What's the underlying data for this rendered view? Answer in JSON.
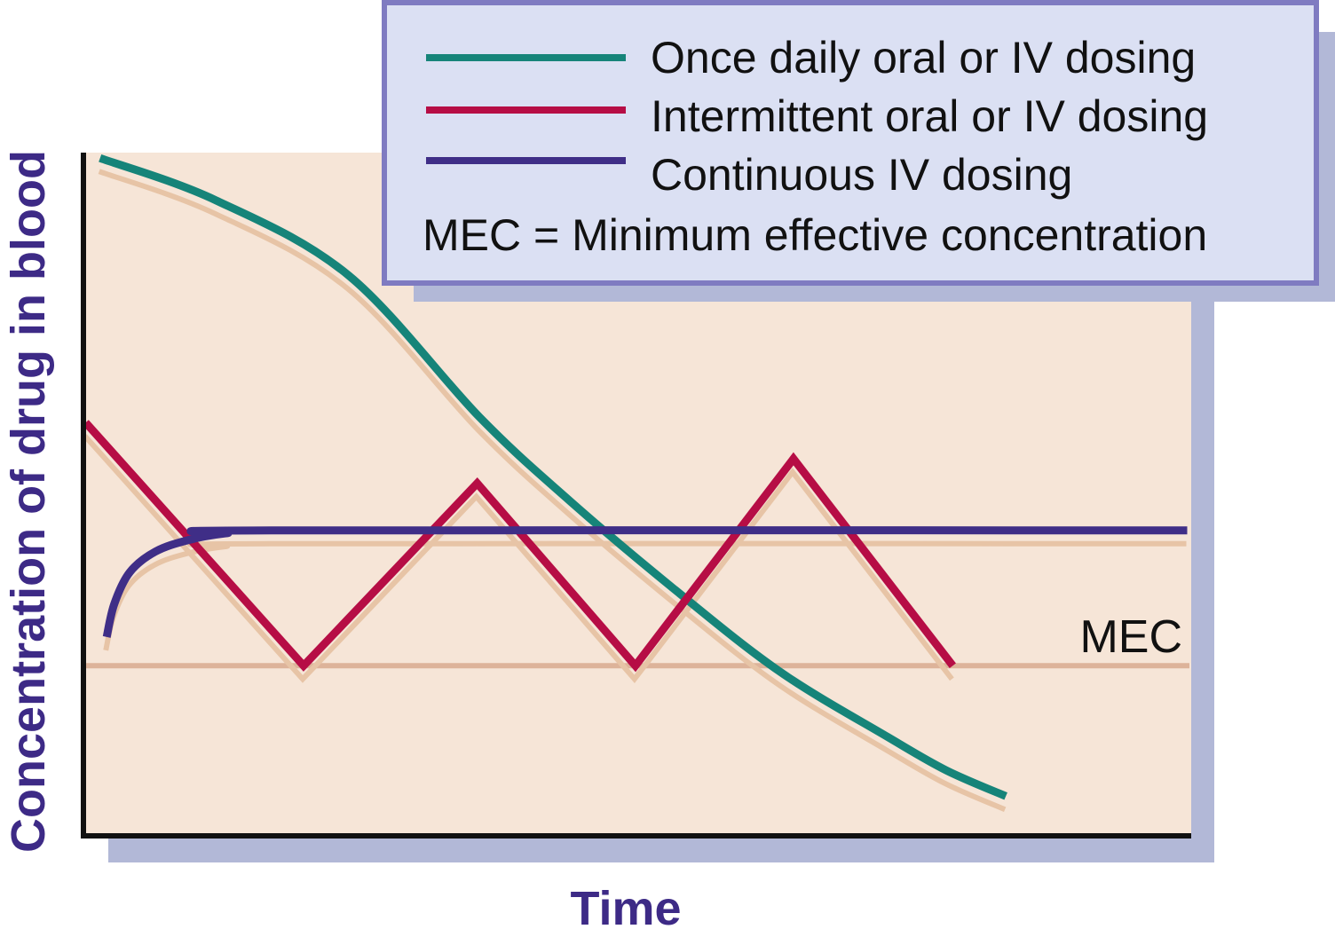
{
  "chart_data": {
    "type": "line",
    "title": "",
    "xlabel": "Time",
    "ylabel": "Concentration of drug in blood",
    "xlim": [
      0,
      100
    ],
    "ylim": [
      0,
      100
    ],
    "x_ticks": [],
    "y_ticks": [],
    "grid": false,
    "legend_placement": "top-right",
    "legend_note": "MEC = Minimum effective concentration",
    "reference_lines": [
      {
        "name": "MEC",
        "label": "MEC",
        "y": 24.9,
        "color": "#ddb39a"
      }
    ],
    "series": [
      {
        "name": "Once daily oral or IV dosing",
        "color": "#168479",
        "smooth": true,
        "points": [
          [
            1.5,
            99.2
          ],
          [
            12,
            93
          ],
          [
            24,
            82
          ],
          [
            35.8,
            61.3
          ],
          [
            44,
            49
          ],
          [
            53.5,
            36
          ],
          [
            63,
            24
          ],
          [
            72.7,
            14.5
          ],
          [
            78,
            9.6
          ],
          [
            83.4,
            5.8
          ]
        ]
      },
      {
        "name": "Intermittent oral or IV dosing",
        "color": "#b60d45",
        "smooth": false,
        "points": [
          [
            0.2,
            60.5
          ],
          [
            19.9,
            24.9
          ],
          [
            35.6,
            51.6
          ],
          [
            49.9,
            24.9
          ],
          [
            64.2,
            55.2
          ],
          [
            78.6,
            24.9
          ]
        ]
      },
      {
        "name": "Continuous IV dosing",
        "color": "#3f2e87",
        "smooth": true,
        "points": [
          [
            2.1,
            29.1
          ],
          [
            2.8,
            34
          ],
          [
            4.2,
            38.6
          ],
          [
            6.5,
            41.6
          ],
          [
            9.5,
            43.3
          ],
          [
            13,
            44.3
          ],
          [
            17,
            44.7
          ],
          [
            99.8,
            44.7
          ]
        ]
      }
    ]
  },
  "colors": {
    "plot_background": "#f6e5d7",
    "shadow": "#b2b8d7",
    "line_shadow": "#e7c4a6",
    "axis": "#111111",
    "legend_background": "#dbe0f3",
    "legend_border": "#7f7bc1",
    "label_color": "#3d2a86"
  }
}
